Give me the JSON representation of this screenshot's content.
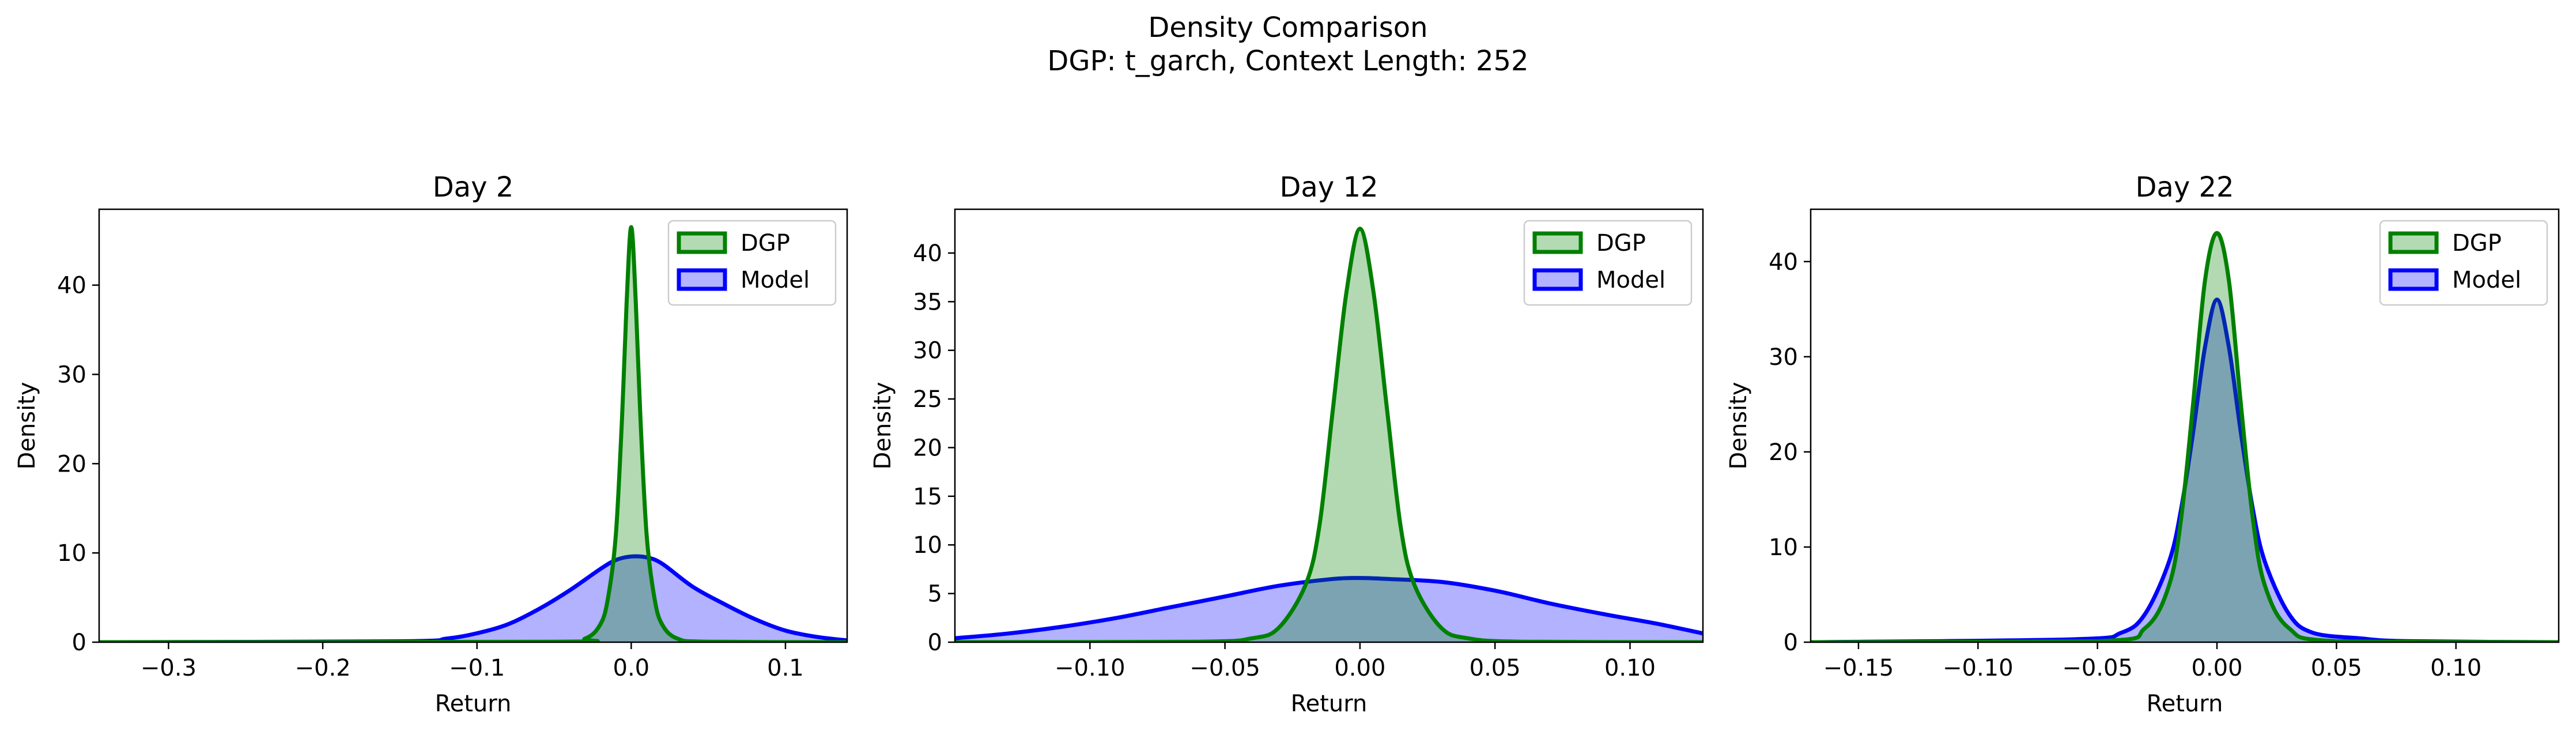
{
  "figure": {
    "title": "Density Comparison",
    "subtitle": "DGP: t_garch, Context Length: 252"
  },
  "colors": {
    "dgp": "#008000",
    "dgp_fill": "#b3dbb3",
    "model": "#0000ff",
    "model_fill": "#b3b3ff",
    "frame": "#000000"
  },
  "chart_data": [
    {
      "type": "area",
      "title": "Day 2",
      "xlabel": "Return",
      "ylabel": "Density",
      "xlim": [
        -0.345,
        0.14
      ],
      "ylim": [
        0,
        48.5
      ],
      "xticks": [
        -0.3,
        -0.2,
        -0.1,
        0.0,
        0.1
      ],
      "xtick_labels": [
        "−0.3",
        "−0.2",
        "−0.1",
        "0.0",
        "0.1"
      ],
      "yticks": [
        0,
        10,
        20,
        30,
        40
      ],
      "ytick_labels": [
        "0",
        "10",
        "20",
        "30",
        "40"
      ],
      "legend": "top-right",
      "series": [
        {
          "name": "DGP",
          "x": [
            -0.345,
            -0.05,
            -0.03,
            -0.02,
            -0.015,
            -0.01,
            -0.006,
            -0.003,
            0.0,
            0.003,
            0.006,
            0.01,
            0.015,
            0.02,
            0.03,
            0.05,
            0.14
          ],
          "y": [
            0,
            0.05,
            0.4,
            2,
            5,
            12,
            25,
            38,
            46.5,
            38,
            25,
            12,
            5,
            2,
            0.4,
            0.05,
            0
          ]
        },
        {
          "name": "Model",
          "x": [
            -0.345,
            -0.15,
            -0.12,
            -0.1,
            -0.08,
            -0.06,
            -0.04,
            -0.02,
            -0.01,
            0.0,
            0.01,
            0.02,
            0.04,
            0.06,
            0.08,
            0.1,
            0.12,
            0.14
          ],
          "y": [
            0,
            0.1,
            0.4,
            1.0,
            2.0,
            3.7,
            5.8,
            8.2,
            9.2,
            9.6,
            9.5,
            8.8,
            6.2,
            4.3,
            2.6,
            1.3,
            0.6,
            0.2
          ]
        }
      ]
    },
    {
      "type": "area",
      "title": "Day 12",
      "xlabel": "Return",
      "ylabel": "Density",
      "xlim": [
        -0.15,
        0.127
      ],
      "ylim": [
        0,
        44.5
      ],
      "xticks": [
        -0.1,
        -0.05,
        0.0,
        0.05,
        0.1
      ],
      "xtick_labels": [
        "−0.10",
        "−0.05",
        "0.00",
        "0.05",
        "0.10"
      ],
      "yticks": [
        0,
        5,
        10,
        15,
        20,
        25,
        30,
        35,
        40
      ],
      "ytick_labels": [
        "0",
        "5",
        "10",
        "15",
        "20",
        "25",
        "30",
        "35",
        "40"
      ],
      "legend": "top-right",
      "series": [
        {
          "name": "DGP",
          "x": [
            -0.15,
            -0.06,
            -0.04,
            -0.03,
            -0.02,
            -0.015,
            -0.01,
            -0.005,
            0.0,
            0.005,
            0.01,
            0.015,
            0.02,
            0.03,
            0.04,
            0.06,
            0.127
          ],
          "y": [
            0,
            0.05,
            0.4,
            1.5,
            6,
            12,
            24,
            36,
            42.5,
            36,
            24,
            12,
            6,
            1.5,
            0.4,
            0.05,
            0
          ]
        },
        {
          "name": "Model",
          "x": [
            -0.15,
            -0.13,
            -0.11,
            -0.09,
            -0.07,
            -0.05,
            -0.03,
            -0.01,
            0.0,
            0.01,
            0.03,
            0.05,
            0.07,
            0.09,
            0.11,
            0.127
          ],
          "y": [
            0.4,
            0.9,
            1.6,
            2.5,
            3.6,
            4.7,
            5.8,
            6.5,
            6.6,
            6.5,
            6.2,
            5.3,
            4.0,
            2.9,
            1.9,
            0.9
          ]
        }
      ]
    },
    {
      "type": "area",
      "title": "Day 22",
      "xlabel": "Return",
      "ylabel": "Density",
      "xlim": [
        -0.17,
        0.143
      ],
      "ylim": [
        0,
        45.5
      ],
      "xticks": [
        -0.15,
        -0.1,
        -0.05,
        0.0,
        0.05,
        0.1
      ],
      "xtick_labels": [
        "−0.15",
        "−0.10",
        "−0.05",
        "0.00",
        "0.05",
        "0.10"
      ],
      "yticks": [
        0,
        10,
        20,
        30,
        40
      ],
      "ytick_labels": [
        "0",
        "10",
        "20",
        "30",
        "40"
      ],
      "legend": "top-right",
      "series": [
        {
          "name": "DGP",
          "x": [
            -0.17,
            -0.05,
            -0.03,
            -0.02,
            -0.015,
            -0.01,
            -0.005,
            0.0,
            0.005,
            0.01,
            0.015,
            0.02,
            0.03,
            0.05,
            0.143
          ],
          "y": [
            0,
            0.1,
            1.5,
            6,
            13,
            25,
            38,
            43,
            38,
            25,
            13,
            6,
            1.5,
            0.1,
            0
          ]
        },
        {
          "name": "Model",
          "x": [
            -0.17,
            -0.06,
            -0.04,
            -0.03,
            -0.02,
            -0.015,
            -0.01,
            -0.005,
            0.0,
            0.005,
            0.01,
            0.015,
            0.02,
            0.03,
            0.04,
            0.06,
            0.08,
            0.143
          ],
          "y": [
            0,
            0.3,
            1.0,
            3.0,
            8.5,
            14,
            22,
            31,
            36,
            31,
            22,
            14,
            8.5,
            3.0,
            1.0,
            0.4,
            0.1,
            0
          ]
        }
      ]
    }
  ]
}
